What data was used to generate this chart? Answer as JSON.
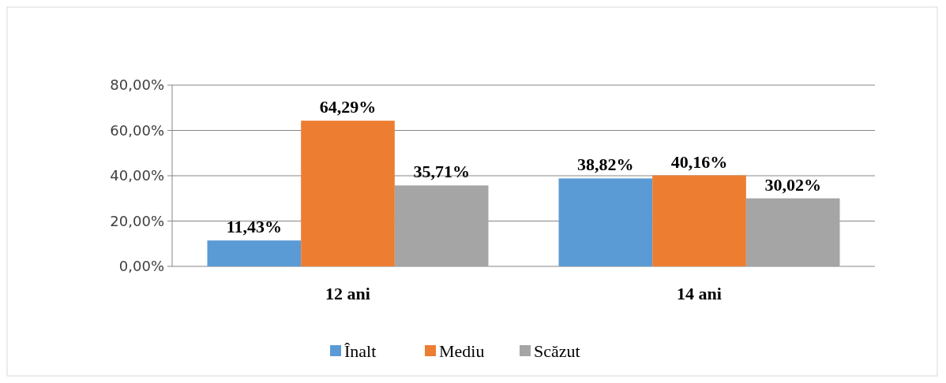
{
  "chart_data": {
    "type": "bar",
    "categories": [
      "12 ani",
      "14 ani"
    ],
    "series": [
      {
        "name": "Înalt",
        "color": "#5b9bd5",
        "values": [
          11.43,
          38.82
        ],
        "value_labels": [
          "11,43%",
          "38,82%"
        ]
      },
      {
        "name": "Mediu",
        "color": "#ed7d31",
        "values": [
          64.29,
          40.16
        ],
        "value_labels": [
          "64,29%",
          "40,16%"
        ]
      },
      {
        "name": "Scăzut",
        "color": "#a5a5a5",
        "values": [
          35.71,
          30.02
        ],
        "value_labels": [
          "35,71%",
          "30,02%"
        ]
      }
    ],
    "ylim": [
      0,
      80
    ],
    "yticks": [
      {
        "value": 0,
        "label": "0,00%"
      },
      {
        "value": 20,
        "label": "20,00%"
      },
      {
        "value": 40,
        "label": "40,00%"
      },
      {
        "value": 60,
        "label": "60,00%"
      },
      {
        "value": 80,
        "label": "80,00%"
      }
    ],
    "grid": true,
    "legend": "bottom"
  }
}
